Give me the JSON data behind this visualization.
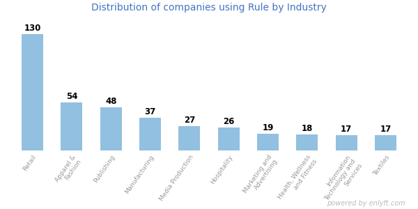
{
  "title": "Distribution of companies using Rule by Industry",
  "title_color": "#4472c4",
  "categories": [
    "Retail",
    "Apparel &\nFashion",
    "Publishing",
    "Manufacturing",
    "Media Production",
    "Hospitality",
    "Marketing and\nAdvertising",
    "Health, Wellness\nand Fitness",
    "Information\nTechnology and\nServices",
    "Textiles"
  ],
  "values": [
    130,
    54,
    48,
    37,
    27,
    26,
    19,
    18,
    17,
    17
  ],
  "bar_color": "#92c0e0",
  "label_color": "#000000",
  "label_fontsize": 8.5,
  "label_fontweight": "bold",
  "tick_label_color": "#999999",
  "tick_label_fontsize": 6.5,
  "watermark": "powered by enlyft.com",
  "watermark_color": "#bbbbbb",
  "background_color": "#ffffff",
  "ylim": [
    0,
    150
  ],
  "title_fontsize": 10,
  "bar_width": 0.55,
  "rotation": 55
}
